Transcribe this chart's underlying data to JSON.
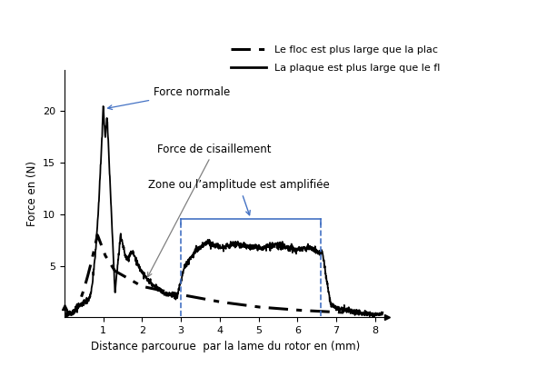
{
  "title": "",
  "xlabel": "Distance parcourue  par la lame du rotor en (mm)",
  "ylabel": "Force en (N)",
  "xlim": [
    0,
    8.3
  ],
  "ylim": [
    0,
    24
  ],
  "xticks": [
    1,
    2,
    3,
    4,
    5,
    6,
    7,
    8
  ],
  "yticks": [
    5,
    10,
    15,
    20
  ],
  "legend1": "Le floc est plus large que la plac",
  "legend2": "La plaque est plus large que le fl",
  "annotation_normale": "Force normale",
  "annotation_cisaille": "Force de cisaillement",
  "annotation_zone": "Zone ou l’amplitude est amplifiée",
  "zone_x1": 3.0,
  "zone_x2": 6.6,
  "zone_ytop": 9.5,
  "background_color": "#ffffff",
  "line_color": "#000000",
  "box_color": "#4472c4",
  "arrow_color_blue": "#4472c4",
  "arrow_color_gray": "#808080"
}
